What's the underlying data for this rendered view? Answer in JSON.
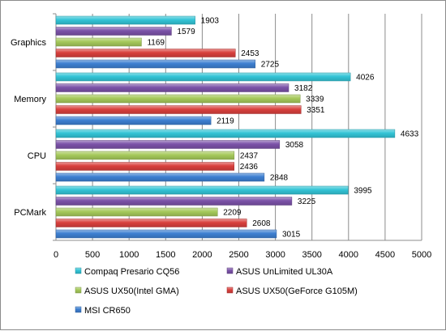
{
  "chart_data": {
    "type": "bar",
    "orientation": "horizontal",
    "categories": [
      "Graphics",
      "Memory",
      "CPU",
      "PCMark"
    ],
    "series": [
      {
        "name": "Compaq Presario CQ56",
        "color": "#33c4d6",
        "values": [
          1903,
          4026,
          4633,
          3995
        ]
      },
      {
        "name": "ASUS UnLimited UL30A",
        "color": "#7b52a8",
        "values": [
          1579,
          3182,
          3058,
          3225
        ]
      },
      {
        "name": "ASUS UX50(Intel GMA)",
        "color": "#a5c95a",
        "values": [
          1169,
          3339,
          2437,
          2209
        ]
      },
      {
        "name": "ASUS UX50(GeForce G105M)",
        "color": "#d9403d",
        "values": [
          2453,
          3351,
          2436,
          2608
        ]
      },
      {
        "name": "MSI CR650",
        "color": "#3d7fd1",
        "values": [
          2725,
          2119,
          2848,
          3015
        ]
      }
    ],
    "xlim": [
      0,
      5000
    ],
    "x_ticks": [
      "0",
      "500",
      "1000",
      "1500",
      "2000",
      "2500",
      "3000",
      "3500",
      "4000",
      "4500",
      "5000"
    ],
    "xlabel": "",
    "ylabel": "",
    "title": "",
    "legend_position": "bottom",
    "grid": "vertical"
  }
}
